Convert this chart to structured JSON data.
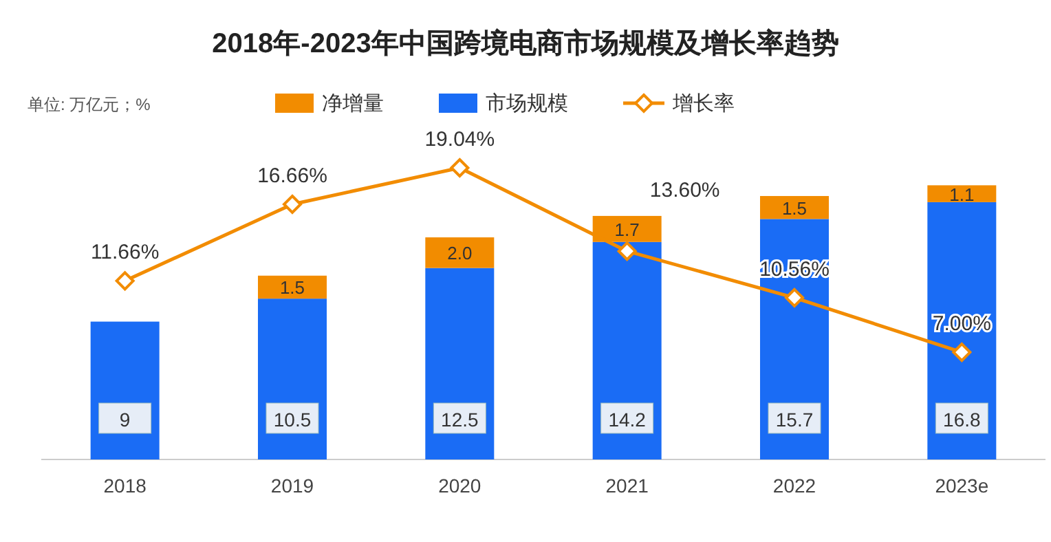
{
  "chart_data": {
    "type": "bar",
    "stacked": true,
    "title": "2018年-2023年中国跨境电商市场规模及增长率趋势",
    "categories": [
      "2018",
      "2019",
      "2020",
      "2021",
      "2022",
      "2023e"
    ],
    "series": [
      {
        "name": "市场规模",
        "color": "#1a6cf5",
        "values": [
          9,
          10.5,
          12.5,
          14.2,
          15.7,
          16.8
        ],
        "value_labels": [
          "9",
          "10.5",
          "12.5",
          "14.2",
          "15.7",
          "16.8"
        ]
      },
      {
        "name": "净增量",
        "color": "#f28c00",
        "values": [
          null,
          1.5,
          2.0,
          1.7,
          1.5,
          1.1
        ],
        "value_labels": [
          null,
          "1.5",
          "2.0",
          "1.7",
          "1.5",
          "1.1"
        ]
      },
      {
        "name": "增长率",
        "type": "line",
        "color": "#f28c00",
        "values": [
          11.66,
          16.66,
          19.04,
          13.6,
          10.56,
          7.0
        ],
        "value_labels": [
          "11.66%",
          "16.66%",
          "19.04%",
          "13.60%",
          "10.56%",
          "7.00%"
        ]
      }
    ],
    "marker": "diamond",
    "line_style": "solid",
    "legend": "top left",
    "annotations": [
      "单位: 万亿元；%"
    ]
  }
}
